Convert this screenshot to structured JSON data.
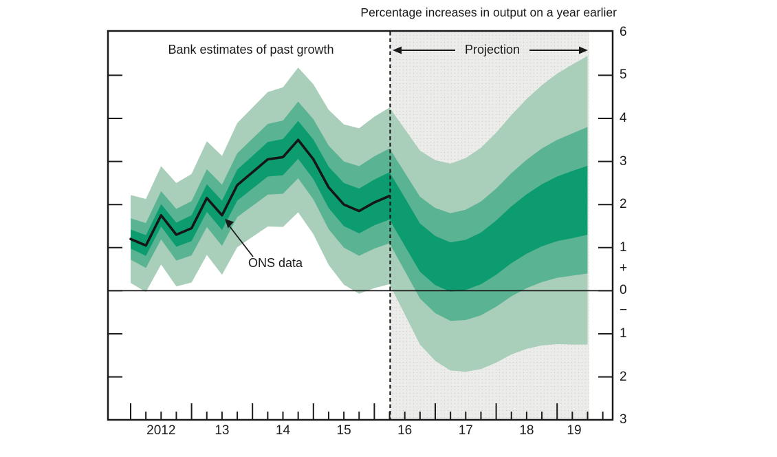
{
  "chart_data": {
    "type": "fan",
    "title": "Percentage increases in output on a year earlier",
    "region_labels": {
      "past": "Bank estimates of past growth",
      "projection": "Projection",
      "ons": "ONS data"
    },
    "x_axis": {
      "quarter_tick_start": 2012.0,
      "quarter_tick_end": 2019.75,
      "quarter_step": 0.25,
      "year_labels": [
        {
          "text": "2012",
          "t": 2012.5
        },
        {
          "text": "13",
          "t": 2013.5
        },
        {
          "text": "14",
          "t": 2014.5
        },
        {
          "text": "15",
          "t": 2015.5
        },
        {
          "text": "16",
          "t": 2016.5
        },
        {
          "text": "17",
          "t": 2017.5
        },
        {
          "text": "18",
          "t": 2018.5
        },
        {
          "text": "19",
          "t": 2019.28
        }
      ]
    },
    "y_axis": {
      "min": -3,
      "max": 6,
      "side_tick_values": [
        5,
        4,
        3,
        2,
        1,
        0,
        -1,
        -2
      ],
      "labels": [
        {
          "v": 6,
          "text": "6"
        },
        {
          "v": 5,
          "text": "5"
        },
        {
          "v": 4,
          "text": "4"
        },
        {
          "v": 3,
          "text": "3"
        },
        {
          "v": 2,
          "text": "2"
        },
        {
          "v": 1,
          "text": "1"
        },
        {
          "v": 0.52,
          "text": "+"
        },
        {
          "v": 0,
          "text": "0"
        },
        {
          "v": -0.45,
          "text": "−"
        },
        {
          "v": -1,
          "text": "1"
        },
        {
          "v": -2,
          "text": "2"
        },
        {
          "v": -3,
          "text": "3"
        }
      ]
    },
    "projection_start_t": 2016.26,
    "fan_end_t": 2019.5,
    "quarters_t": [
      2012.0,
      2012.25,
      2012.5,
      2012.75,
      2013.0,
      2013.25,
      2013.5,
      2013.75,
      2014.0,
      2014.25,
      2014.5,
      2014.75,
      2015.0,
      2015.25,
      2015.5,
      2015.75,
      2016.0,
      2016.25,
      2016.5,
      2016.75,
      2017.0,
      2017.25,
      2017.5,
      2017.75,
      2018.0,
      2018.25,
      2018.5,
      2018.75,
      2019.0,
      2019.25,
      2019.5
    ],
    "center": [
      1.2,
      1.05,
      1.75,
      1.3,
      1.45,
      2.15,
      1.75,
      2.45,
      2.75,
      3.05,
      3.1,
      3.5,
      3.05,
      2.4,
      2.0,
      1.85,
      2.05,
      2.2,
      1.6,
      1.0,
      0.7,
      0.55,
      0.6,
      0.75,
      1.0,
      1.3,
      1.55,
      1.75,
      1.9,
      2.0,
      2.1
    ],
    "ons_line": [
      1.2,
      1.05,
      1.75,
      1.3,
      1.45,
      2.15,
      1.75,
      2.45,
      2.75,
      3.05,
      3.1,
      3.5,
      3.05,
      2.4,
      2.0,
      1.85,
      2.05,
      2.2
    ],
    "half_width_inner": [
      0.22,
      0.24,
      0.26,
      0.28,
      0.3,
      0.32,
      0.34,
      0.36,
      0.38,
      0.4,
      0.42,
      0.44,
      0.46,
      0.48,
      0.5,
      0.52,
      0.53,
      0.55,
      0.56,
      0.56,
      0.57,
      0.57,
      0.58,
      0.6,
      0.63,
      0.66,
      0.69,
      0.72,
      0.75,
      0.78,
      0.8
    ],
    "half_width_middle": [
      0.48,
      0.52,
      0.56,
      0.6,
      0.63,
      0.67,
      0.71,
      0.74,
      0.78,
      0.82,
      0.85,
      0.89,
      0.93,
      0.97,
      1.0,
      1.04,
      1.07,
      1.1,
      1.14,
      1.18,
      1.22,
      1.25,
      1.28,
      1.32,
      1.37,
      1.43,
      1.49,
      1.55,
      1.6,
      1.65,
      1.7
    ],
    "half_width_outer": [
      1.02,
      1.08,
      1.14,
      1.2,
      1.26,
      1.32,
      1.38,
      1.44,
      1.5,
      1.56,
      1.62,
      1.68,
      1.74,
      1.8,
      1.86,
      1.92,
      1.99,
      2.05,
      2.15,
      2.25,
      2.33,
      2.4,
      2.48,
      2.57,
      2.67,
      2.78,
      2.9,
      3.02,
      3.14,
      3.25,
      3.35
    ],
    "colors": {
      "band_inner": "#0c9c70",
      "band_middle": "#5ab392",
      "band_outer": "#a9ceba",
      "projection_bg": "#ecedea",
      "projection_dot": "#d3d5cf",
      "line": "#1a1a1a",
      "frame": "#1a1a1a"
    }
  }
}
